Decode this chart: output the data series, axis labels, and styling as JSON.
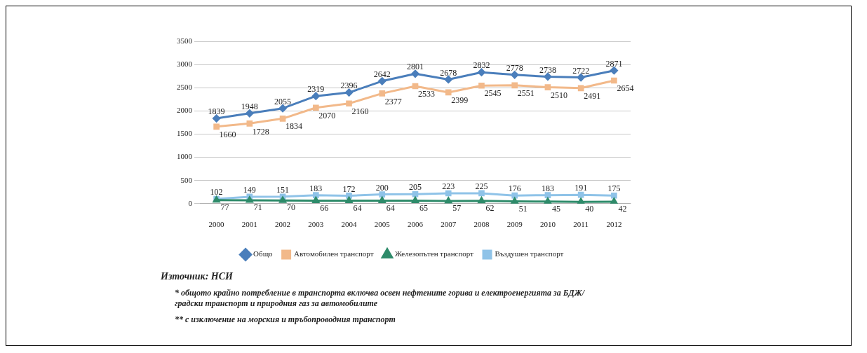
{
  "chart_data": {
    "type": "line",
    "categories": [
      "2000",
      "2001",
      "2002",
      "2003",
      "2004",
      "2005",
      "2006",
      "2007",
      "2008",
      "2009",
      "2010",
      "2011",
      "2012"
    ],
    "series": [
      {
        "name": "Общо",
        "color": "#4a7ebb",
        "marker": "diamond",
        "values": [
          1839,
          1948,
          2055,
          2319,
          2396,
          2642,
          2801,
          2678,
          2832,
          2778,
          2738,
          2722,
          2871
        ]
      },
      {
        "name": "Автомобилен транспорт",
        "color": "#f2b98a",
        "marker": "square",
        "values": [
          1660,
          1728,
          1834,
          2070,
          2160,
          2377,
          2533,
          2399,
          2545,
          2551,
          2510,
          2491,
          2654
        ]
      },
      {
        "name": "Железопътен транспорт",
        "color": "#2e8b6a",
        "marker": "triangle",
        "values": [
          77,
          71,
          70,
          66,
          64,
          64,
          65,
          57,
          62,
          51,
          45,
          40,
          42
        ]
      },
      {
        "name": "Въздушен транспорт",
        "color": "#8fc3e8",
        "marker": "square",
        "values": [
          102,
          149,
          151,
          183,
          172,
          200,
          205,
          223,
          225,
          176,
          183,
          191,
          175
        ]
      }
    ],
    "ylim": [
      0,
      3500
    ],
    "yticks": [
      0,
      500,
      1000,
      1500,
      2000,
      2500,
      3000,
      3500
    ],
    "grid": "y",
    "legend": "bottom",
    "data_labels": true,
    "annotations": [
      "Източник: НСИ",
      "* общото крайно потребление в транспорта включва освен нефтените горива и електроенергията за БДЖ/градски транспорт и природния газ за автомобилите",
      "** с изключение на морския и тръбопроводния транспорт"
    ]
  }
}
